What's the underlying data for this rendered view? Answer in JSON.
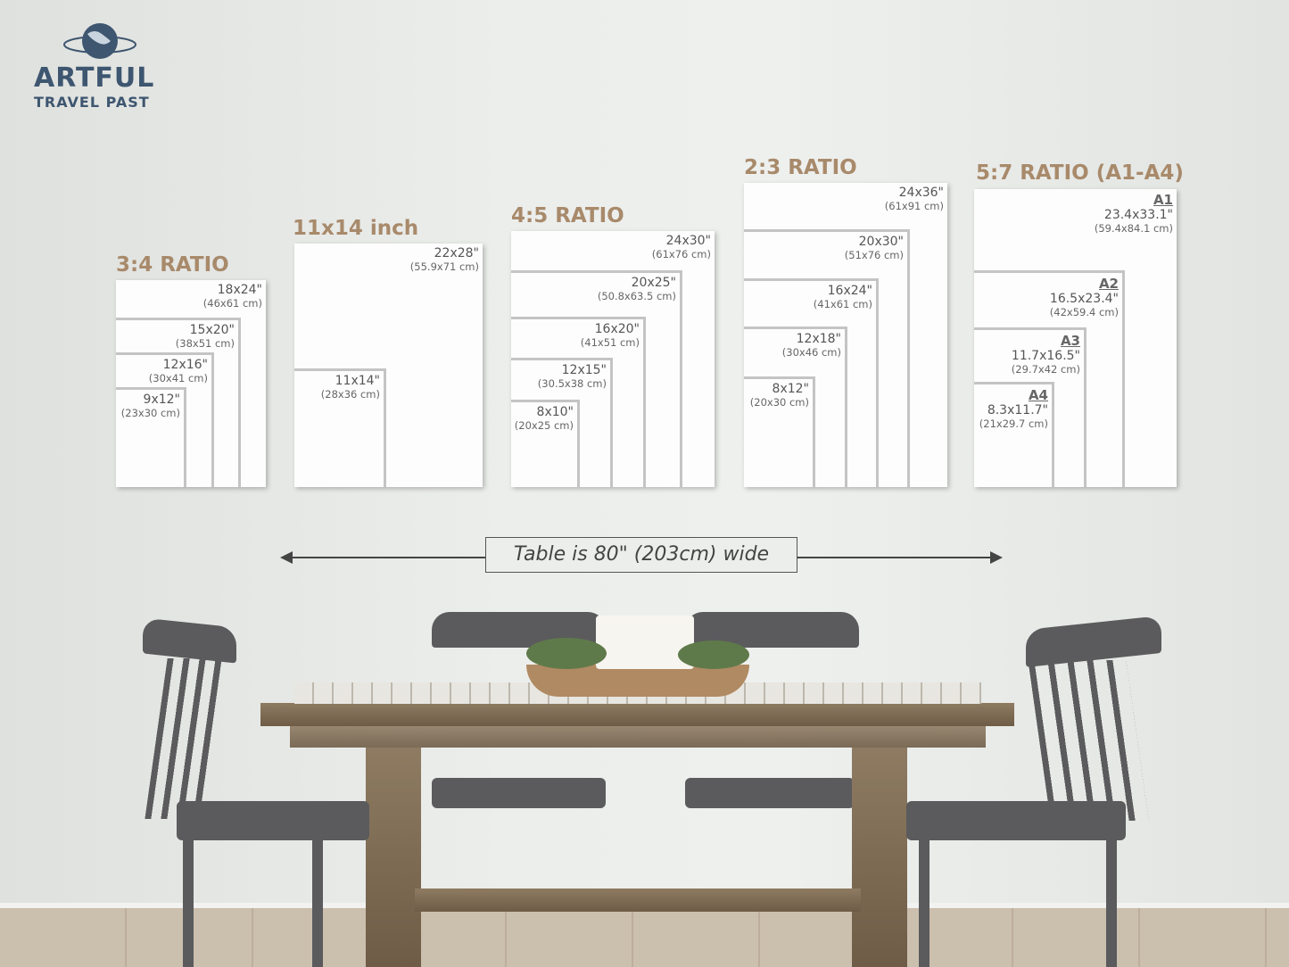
{
  "brand": {
    "line1": "ARTFUL",
    "line2": "TRAVEL PAST",
    "logo_icon": "globe-icon"
  },
  "groups": [
    {
      "title": "3:4 RATIO",
      "frames": [
        {
          "size": "18x24\"",
          "cm": "(46x61 cm)"
        },
        {
          "size": "15x20\"",
          "cm": "(38x51 cm)"
        },
        {
          "size": "12x16\"",
          "cm": "(30x41 cm)"
        },
        {
          "size": "9x12\"",
          "cm": "(23x30 cm)"
        }
      ]
    },
    {
      "title": "11x14 inch",
      "frames": [
        {
          "size": "22x28\"",
          "cm": "(55.9x71 cm)"
        },
        {
          "size": "11x14\"",
          "cm": "(28x36 cm)"
        }
      ]
    },
    {
      "title": "4:5 RATIO",
      "frames": [
        {
          "size": "24x30\"",
          "cm": "(61x76 cm)"
        },
        {
          "size": "20x25\"",
          "cm": "(50.8x63.5 cm)"
        },
        {
          "size": "16x20\"",
          "cm": "(41x51 cm)"
        },
        {
          "size": "12x15\"",
          "cm": "(30.5x38 cm)"
        },
        {
          "size": "8x10\"",
          "cm": "(20x25 cm)"
        }
      ]
    },
    {
      "title": "2:3 RATIO",
      "frames": [
        {
          "size": "24x36\"",
          "cm": "(61x91 cm)"
        },
        {
          "size": "20x30\"",
          "cm": "(51x76 cm)"
        },
        {
          "size": "16x24\"",
          "cm": "(41x61 cm)"
        },
        {
          "size": "12x18\"",
          "cm": "(30x46 cm)"
        },
        {
          "size": "8x12\"",
          "cm": "(20x30 cm)"
        }
      ]
    },
    {
      "title": "5:7 RATIO (A1-A4)",
      "frames": [
        {
          "name": "A1",
          "size": "23.4x33.1\"",
          "cm": "(59.4x84.1 cm)"
        },
        {
          "name": "A2",
          "size": "16.5x23.4\"",
          "cm": "(42x59.4 cm)"
        },
        {
          "name": "A3",
          "size": "11.7x16.5\"",
          "cm": "(29.7x42 cm)"
        },
        {
          "name": "A4",
          "size": "8.3x11.7\"",
          "cm": "(21x29.7 cm)"
        }
      ]
    }
  ],
  "measure": {
    "label": "Table is 80\" (203cm) wide"
  },
  "colors": {
    "title": "#a88a6b",
    "brand": "#3e5670"
  }
}
